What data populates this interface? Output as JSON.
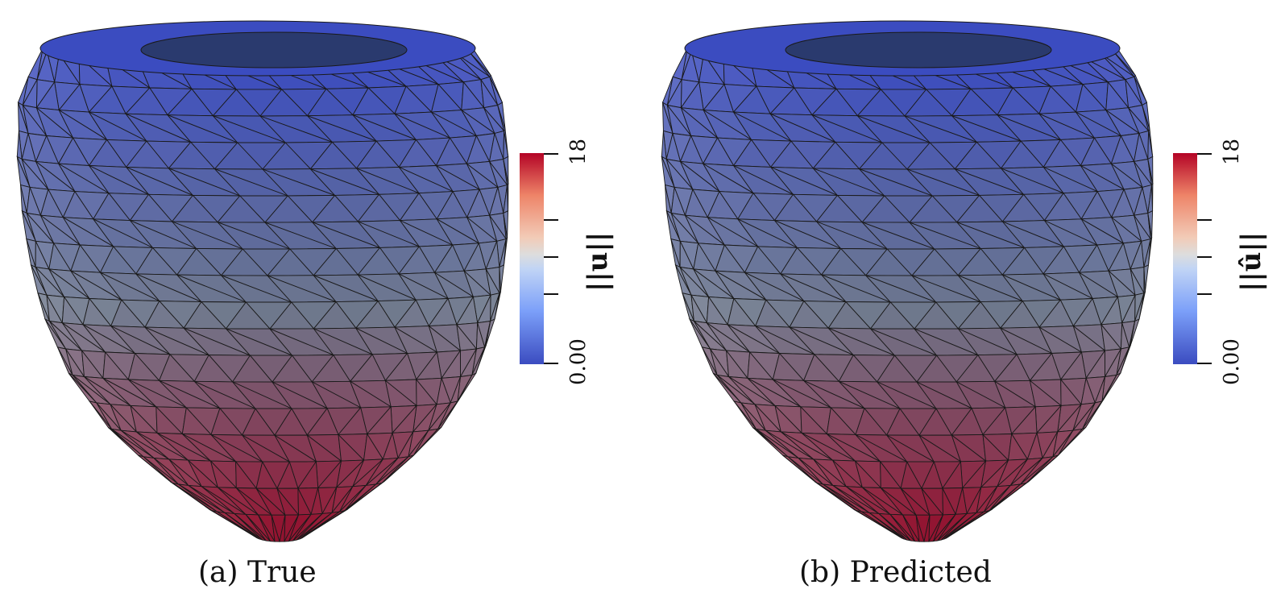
{
  "panels": [
    {
      "caption": "(a) True",
      "colorbar": {
        "min_label": "0.00",
        "max_label": "18",
        "title": "||u||"
      }
    },
    {
      "caption": "(b) Predicted",
      "colorbar": {
        "min_label": "0.00",
        "max_label": "18",
        "title": "||û||"
      }
    }
  ],
  "colormap": {
    "low": "#3b4cc0",
    "mid": "#dddddd",
    "high": "#b40426",
    "mesh_line": "#1a1a1a"
  }
}
